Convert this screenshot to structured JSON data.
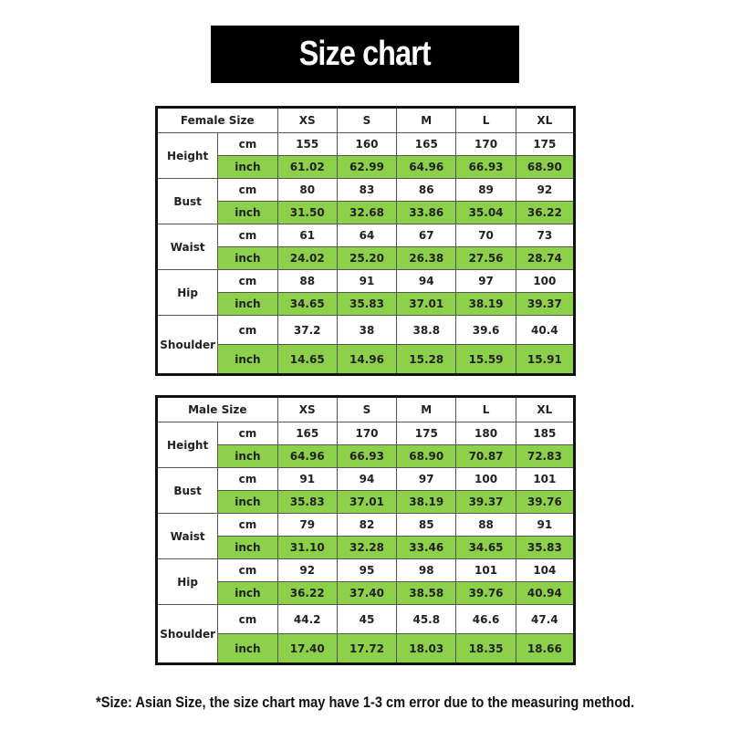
{
  "title": "Size chart",
  "colors": {
    "green": "#8dd04a",
    "border": "#111111"
  },
  "sizes": [
    "XS",
    "S",
    "M",
    "L",
    "XL"
  ],
  "tables": [
    {
      "header": "Female Size",
      "rows": [
        {
          "label": "Height",
          "cm": [
            "155",
            "160",
            "165",
            "170",
            "175"
          ],
          "inch": [
            "61.02",
            "62.99",
            "64.96",
            "66.93",
            "68.90"
          ]
        },
        {
          "label": "Bust",
          "cm": [
            "80",
            "83",
            "86",
            "89",
            "92"
          ],
          "inch": [
            "31.50",
            "32.68",
            "33.86",
            "35.04",
            "36.22"
          ]
        },
        {
          "label": "Waist",
          "cm": [
            "61",
            "64",
            "67",
            "70",
            "73"
          ],
          "inch": [
            "24.02",
            "25.20",
            "26.38",
            "27.56",
            "28.74"
          ]
        },
        {
          "label": "Hip",
          "cm": [
            "88",
            "91",
            "94",
            "97",
            "100"
          ],
          "inch": [
            "34.65",
            "35.83",
            "37.01",
            "38.19",
            "39.37"
          ]
        },
        {
          "label": "Shoulder",
          "cm": [
            "37.2",
            "38",
            "38.8",
            "39.6",
            "40.4"
          ],
          "inch": [
            "14.65",
            "14.96",
            "15.28",
            "15.59",
            "15.91"
          ]
        }
      ]
    },
    {
      "header": "Male Size",
      "rows": [
        {
          "label": "Height",
          "cm": [
            "165",
            "170",
            "175",
            "180",
            "185"
          ],
          "inch": [
            "64.96",
            "66.93",
            "68.90",
            "70.87",
            "72.83"
          ]
        },
        {
          "label": "Bust",
          "cm": [
            "91",
            "94",
            "97",
            "100",
            "101"
          ],
          "inch": [
            "35.83",
            "37.01",
            "38.19",
            "39.37",
            "39.76"
          ]
        },
        {
          "label": "Waist",
          "cm": [
            "79",
            "82",
            "85",
            "88",
            "91"
          ],
          "inch": [
            "31.10",
            "32.28",
            "33.46",
            "34.65",
            "35.83"
          ]
        },
        {
          "label": "Hip",
          "cm": [
            "92",
            "95",
            "98",
            "101",
            "104"
          ],
          "inch": [
            "36.22",
            "37.40",
            "38.58",
            "39.76",
            "40.94"
          ]
        },
        {
          "label": "Shoulder",
          "cm": [
            "44.2",
            "45",
            "45.8",
            "46.6",
            "47.4"
          ],
          "inch": [
            "17.40",
            "17.72",
            "18.03",
            "18.35",
            "18.66"
          ]
        }
      ]
    }
  ],
  "units": {
    "cm": "cm",
    "inch": "inch"
  },
  "footnote": "*Size: Asian Size, the size chart may have 1-3 cm error due to the measuring method."
}
